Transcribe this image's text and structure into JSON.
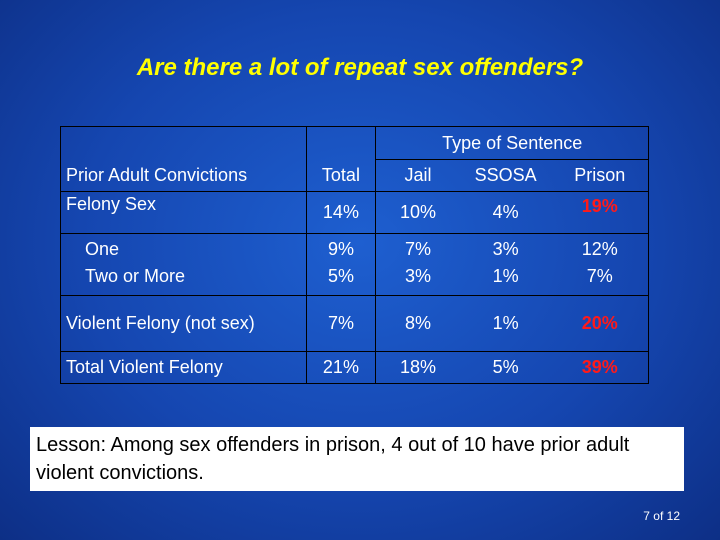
{
  "title": "Are there a lot of repeat sex offenders?",
  "table": {
    "group_header": "Type of Sentence",
    "columns": [
      "Prior Adult Convictions",
      "Total",
      "Jail",
      "SSOSA",
      "Prison"
    ],
    "rows": [
      {
        "label": "Felony Sex",
        "total": "14%",
        "jail": "10%",
        "ssosa": "4%",
        "prison": "19%"
      },
      {
        "label": "One",
        "total": "9%",
        "jail": "7%",
        "ssosa": "3%",
        "prison": "12%"
      },
      {
        "label": "Two or More",
        "total": "5%",
        "jail": "3%",
        "ssosa": "1%",
        "prison": "7%"
      },
      {
        "label": "Violent Felony (not sex)",
        "total": "7%",
        "jail": "8%",
        "ssosa": "1%",
        "prison": "20%"
      },
      {
        "label": "Total Violent Felony",
        "total": "21%",
        "jail": "18%",
        "ssosa": "5%",
        "prison": "39%"
      }
    ]
  },
  "lesson": "Lesson: Among sex offenders in prison, 4 out of 10 have prior adult violent convictions.",
  "page_number": "7 of 12",
  "colors": {
    "title": "#ffff00",
    "highlight": "#ff1a1a",
    "background": "#1546b0"
  }
}
